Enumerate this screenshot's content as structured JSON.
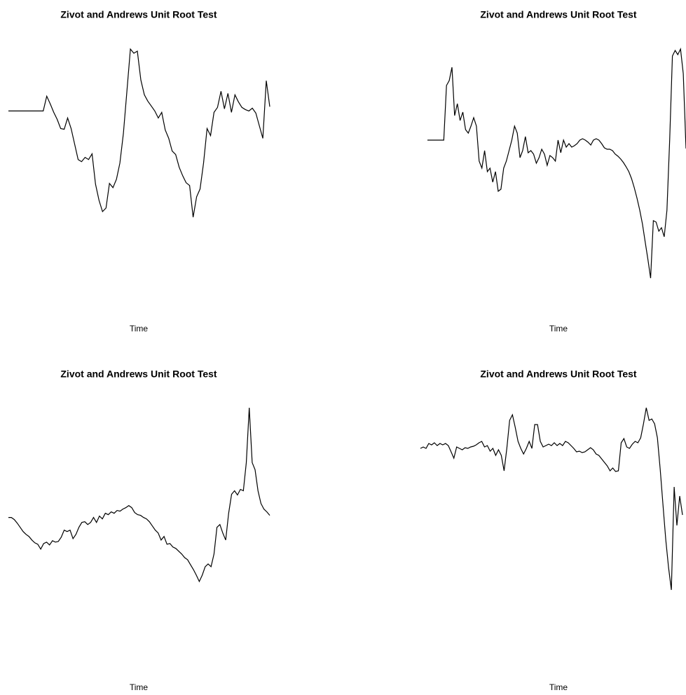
{
  "chart_data": [
    {
      "type": "line",
      "title": "Zivot and Andrews Unit Root Test",
      "xlabel": "Time",
      "color": "#000000",
      "values": [
        162,
        162,
        162,
        162,
        162,
        162,
        162,
        162,
        162,
        162,
        162,
        183,
        172,
        160,
        150,
        137,
        136,
        152,
        137,
        115,
        93,
        90,
        96,
        93,
        101,
        58,
        35,
        19,
        24,
        59,
        53,
        65,
        88,
        130,
        190,
        250,
        244,
        247,
        206,
        185,
        176,
        169,
        162,
        152,
        160,
        135,
        123,
        105,
        100,
        82,
        70,
        60,
        56,
        11,
        40,
        51,
        88,
        137,
        127,
        160,
        167,
        190,
        165,
        187,
        160,
        185,
        175,
        167,
        164,
        162,
        166,
        159,
        141,
        123,
        205,
        168
      ]
    },
    {
      "type": "line",
      "title": "Zivot and Andrews Unit Root Test",
      "xlabel": "Time",
      "color": "#000000",
      "values": [
        220,
        220,
        220,
        220,
        220,
        220,
        220,
        298,
        305,
        324,
        255,
        272,
        248,
        260,
        235,
        230,
        240,
        252,
        240,
        190,
        180,
        205,
        175,
        180,
        160,
        175,
        147,
        150,
        180,
        190,
        205,
        220,
        240,
        230,
        195,
        205,
        225,
        202,
        205,
        200,
        187,
        195,
        207,
        200,
        184,
        198,
        195,
        190,
        220,
        202,
        220,
        210,
        215,
        210,
        212,
        215,
        220,
        222,
        220,
        217,
        213,
        220,
        222,
        220,
        215,
        209,
        207,
        207,
        205,
        200,
        197,
        193,
        188,
        182,
        175,
        165,
        152,
        137,
        120,
        100,
        75,
        50,
        23,
        105,
        103,
        90,
        95,
        82,
        120,
        220,
        340,
        348,
        342,
        350,
        315,
        208
      ]
    },
    {
      "type": "line",
      "title": "Zivot and Andrews Unit Root Test",
      "xlabel": "Time",
      "color": "#000000",
      "values": [
        112,
        112,
        109,
        104,
        98,
        92,
        88,
        85,
        80,
        76,
        74,
        67,
        75,
        77,
        73,
        79,
        77,
        78,
        84,
        94,
        92,
        94,
        82,
        88,
        98,
        105,
        106,
        102,
        105,
        112,
        105,
        114,
        110,
        118,
        116,
        120,
        118,
        122,
        121,
        124,
        126,
        129,
        126,
        119,
        116,
        115,
        112,
        110,
        106,
        100,
        94,
        90,
        80,
        85,
        74,
        75,
        70,
        68,
        64,
        60,
        55,
        52,
        45,
        38,
        30,
        21,
        30,
        42,
        46,
        42,
        60,
        98,
        102,
        90,
        80,
        118,
        145,
        150,
        144,
        152,
        150,
        190,
        268,
        190,
        180,
        150,
        132,
        124,
        120,
        115
      ]
    },
    {
      "type": "line",
      "title": "Zivot and Andrews Unit Root Test",
      "xlabel": "Time",
      "color": "#000000",
      "values": [
        210,
        212,
        210,
        217,
        215,
        218,
        214,
        217,
        215,
        217,
        214,
        205,
        196,
        212,
        210,
        208,
        211,
        210,
        212,
        213,
        215,
        218,
        220,
        212,
        214,
        206,
        210,
        200,
        208,
        200,
        178,
        210,
        250,
        258,
        240,
        220,
        210,
        202,
        210,
        220,
        210,
        244,
        244,
        220,
        212,
        214,
        216,
        214,
        218,
        214,
        217,
        214,
        220,
        218,
        214,
        210,
        205,
        206,
        204,
        205,
        208,
        211,
        208,
        202,
        200,
        195,
        190,
        185,
        178,
        182,
        177,
        178,
        218,
        224,
        212,
        210,
        216,
        220,
        218,
        225,
        245,
        268,
        250,
        252,
        245,
        225,
        180,
        130,
        80,
        40,
        8,
        155,
        100,
        142,
        115
      ]
    }
  ]
}
